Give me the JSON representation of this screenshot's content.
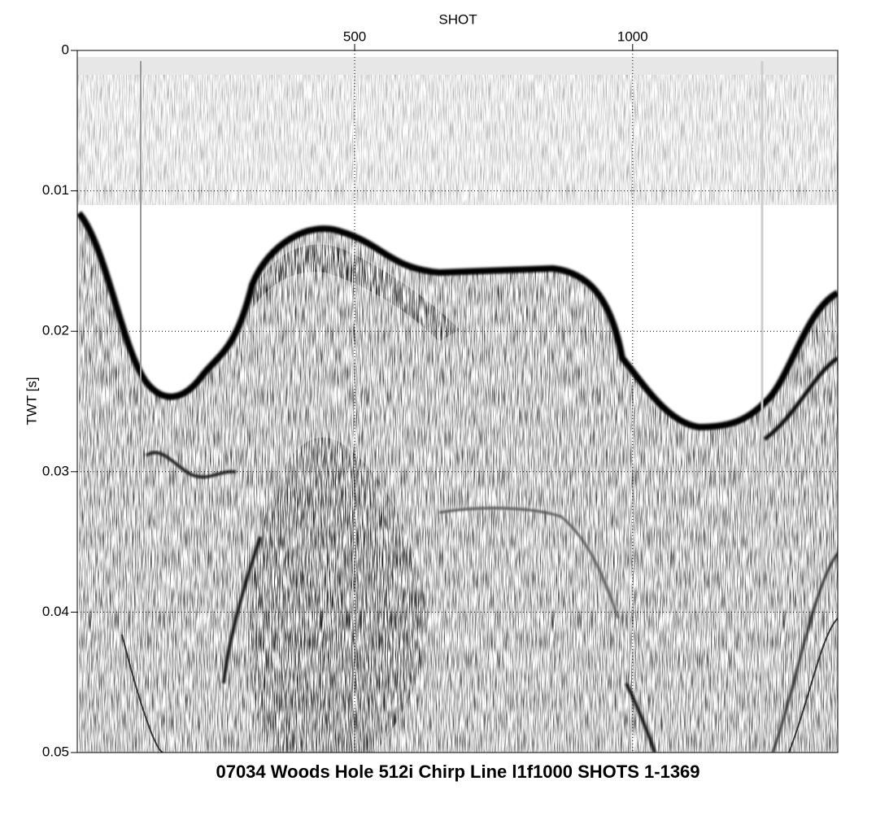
{
  "chart_data": {
    "type": "seismic-section",
    "title": "07034 Woods Hole 512i Chirp Line l1f1000 SHOTS 1-1369",
    "x_label": "SHOT",
    "y_label": "TWT [s]",
    "xlim": [
      1,
      1369
    ],
    "xticks": [
      500,
      1000
    ],
    "ylim": [
      0,
      0.05
    ],
    "yticks": [
      0,
      0.01,
      0.02,
      0.03,
      0.04,
      0.05
    ],
    "y_inverted": true,
    "x_axis_position": "top",
    "grid": true
  }
}
